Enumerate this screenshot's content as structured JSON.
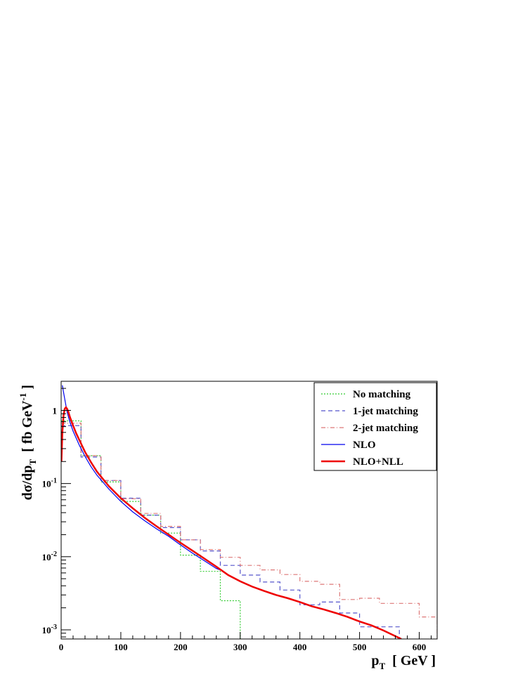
{
  "chart_data": {
    "type": "line",
    "y_scale": "log",
    "xlim": [
      0,
      630
    ],
    "ylim": [
      0.00075,
      2.5
    ],
    "grid": false,
    "legend_position": "top-right",
    "xlabel": {
      "main": "p",
      "sub": "T",
      "tail": "  [ GeV ]"
    },
    "ylabel": {
      "main": "dσ/dp",
      "sub": "T",
      "mid": "  [ fb GeV",
      "sup": "-1",
      "tail": " ]"
    },
    "x_ticks": [
      {
        "value": 0,
        "label": "0"
      },
      {
        "value": 100,
        "label": "100"
      },
      {
        "value": 200,
        "label": "200"
      },
      {
        "value": 300,
        "label": "300"
      },
      {
        "value": 400,
        "label": "400"
      },
      {
        "value": 500,
        "label": "500"
      },
      {
        "value": 600,
        "label": "600"
      }
    ],
    "y_ticks": [
      {
        "value": 1,
        "base": "1",
        "exp": ""
      },
      {
        "value": 0.1,
        "base": "10",
        "exp": "-1"
      },
      {
        "value": 0.01,
        "base": "10",
        "exp": "-2"
      },
      {
        "value": 0.001,
        "base": "10",
        "exp": "-3"
      }
    ],
    "series": [
      {
        "name": "No matching",
        "color": "#33cc33",
        "style": "dotted",
        "kind": "hist",
        "edges": [
          0,
          33.3,
          66.7,
          100,
          133.3,
          166.7,
          200,
          233.3,
          266.7,
          300
        ],
        "values": [
          0.72,
          0.24,
          0.105,
          0.057,
          0.037,
          0.021,
          0.0105,
          0.0063,
          0.0025
        ]
      },
      {
        "name": "1-jet matching",
        "color": "#5555cc",
        "style": "dashed",
        "kind": "hist",
        "edges": [
          0,
          33.3,
          66.7,
          100,
          133.3,
          166.7,
          200,
          233.3,
          266.7,
          300,
          333.3,
          366.7,
          400,
          433.3,
          466.7,
          500,
          533.3,
          566.7
        ],
        "values": [
          0.62,
          0.23,
          0.11,
          0.063,
          0.037,
          0.025,
          0.017,
          0.012,
          0.0076,
          0.0056,
          0.0045,
          0.0035,
          0.0022,
          0.0024,
          0.0017,
          0.0011,
          0.0011
        ]
      },
      {
        "name": "2-jet matching",
        "color": "#dd7777",
        "style": "dashdot",
        "kind": "hist",
        "edges": [
          0,
          33.3,
          66.7,
          100,
          133.3,
          166.7,
          200,
          233.3,
          266.7,
          300,
          333.3,
          366.7,
          400,
          433.3,
          466.7,
          500,
          533.3,
          566.7,
          600,
          630
        ],
        "values": [
          0.67,
          0.24,
          0.11,
          0.062,
          0.039,
          0.026,
          0.017,
          0.0125,
          0.0098,
          0.0076,
          0.0066,
          0.0057,
          0.0046,
          0.0042,
          0.0026,
          0.0027,
          0.0023,
          0.0023,
          0.0015
        ]
      },
      {
        "name": "NLO",
        "color": "#0000ee",
        "style": "solid",
        "kind": "curve",
        "x": [
          2,
          5,
          10,
          15,
          20,
          30,
          40,
          50,
          60,
          80,
          100,
          120,
          140,
          160,
          180,
          200,
          220,
          240,
          260,
          270
        ],
        "y": [
          2.2,
          1.6,
          0.95,
          0.68,
          0.52,
          0.34,
          0.235,
          0.17,
          0.13,
          0.084,
          0.057,
          0.041,
          0.031,
          0.024,
          0.019,
          0.0145,
          0.0112,
          0.0088,
          0.0069,
          0.0064
        ]
      },
      {
        "name": "NLO+NLL",
        "color": "#ee0000",
        "style": "solid",
        "kind": "curve",
        "x": [
          0.5,
          2,
          4,
          6,
          8,
          10,
          12,
          15,
          20,
          25,
          30,
          40,
          50,
          60,
          80,
          100,
          120,
          140,
          160,
          180,
          200,
          220,
          240,
          260,
          280,
          300,
          320,
          340,
          360,
          380,
          400,
          420,
          440,
          460,
          480,
          500,
          520,
          540,
          560,
          570
        ],
        "y": [
          0.2,
          0.5,
          0.85,
          1.05,
          1.1,
          1.05,
          0.96,
          0.8,
          0.62,
          0.49,
          0.4,
          0.27,
          0.195,
          0.145,
          0.092,
          0.063,
          0.046,
          0.034,
          0.026,
          0.02,
          0.0155,
          0.0121,
          0.0094,
          0.0073,
          0.0056,
          0.0046,
          0.0039,
          0.0034,
          0.003,
          0.0027,
          0.0024,
          0.0021,
          0.0019,
          0.0017,
          0.0015,
          0.0013,
          0.00115,
          0.00098,
          0.00082,
          0.00075
        ]
      }
    ]
  }
}
